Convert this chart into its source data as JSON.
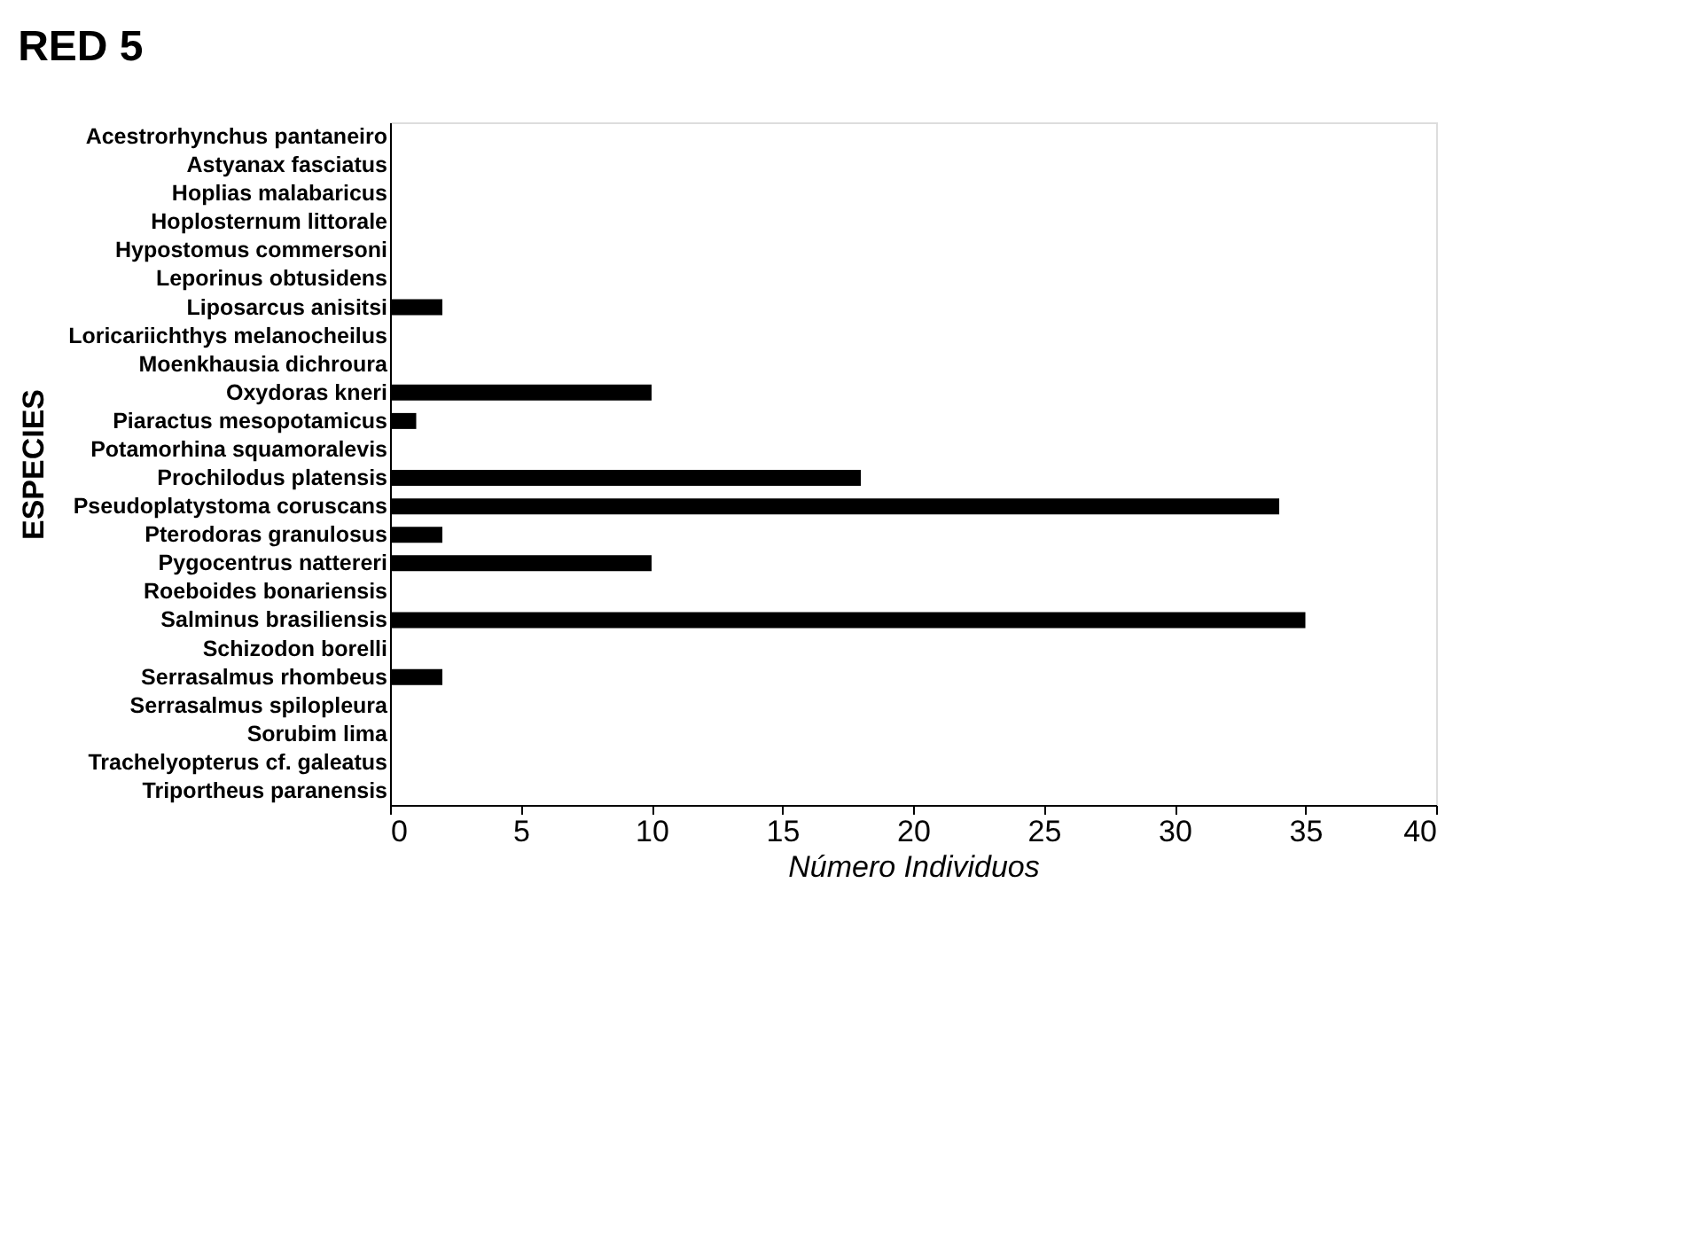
{
  "chart_data": {
    "type": "bar",
    "orientation": "horizontal",
    "title": "RED 5",
    "xlabel": "Número Individuos",
    "ylabel": "ESPECIES",
    "categories": [
      "Acestrorhynchus pantaneiro",
      "Astyanax fasciatus",
      "Hoplias malabaricus",
      "Hoplosternum littorale",
      "Hypostomus commersoni",
      "Leporinus obtusidens",
      "Liposarcus anisitsi",
      "Loricariichthys melanocheilus",
      "Moenkhausia dichroura",
      "Oxydoras kneri",
      "Piaractus mesopotamicus",
      "Potamorhina squamoralevis",
      "Prochilodus platensis",
      "Pseudoplatystoma coruscans",
      "Pterodoras granulosus",
      "Pygocentrus nattereri",
      "Roeboides bonariensis",
      "Salminus brasiliensis",
      "Schizodon borelli",
      "Serrasalmus rhombeus",
      "Serrasalmus spilopleura",
      "Sorubim lima",
      "Trachelyopterus cf. galeatus",
      "Triportheus paranensis"
    ],
    "values": [
      0,
      0,
      0,
      0,
      0,
      0,
      2,
      0,
      0,
      10,
      1,
      0,
      18,
      34,
      2,
      10,
      0,
      35,
      0,
      2,
      0,
      0,
      0,
      0
    ],
    "color": "#000000",
    "xlim": [
      0,
      40
    ],
    "xticks": [
      0,
      5,
      10,
      15,
      20,
      25,
      30,
      35,
      40
    ],
    "grid": false
  }
}
